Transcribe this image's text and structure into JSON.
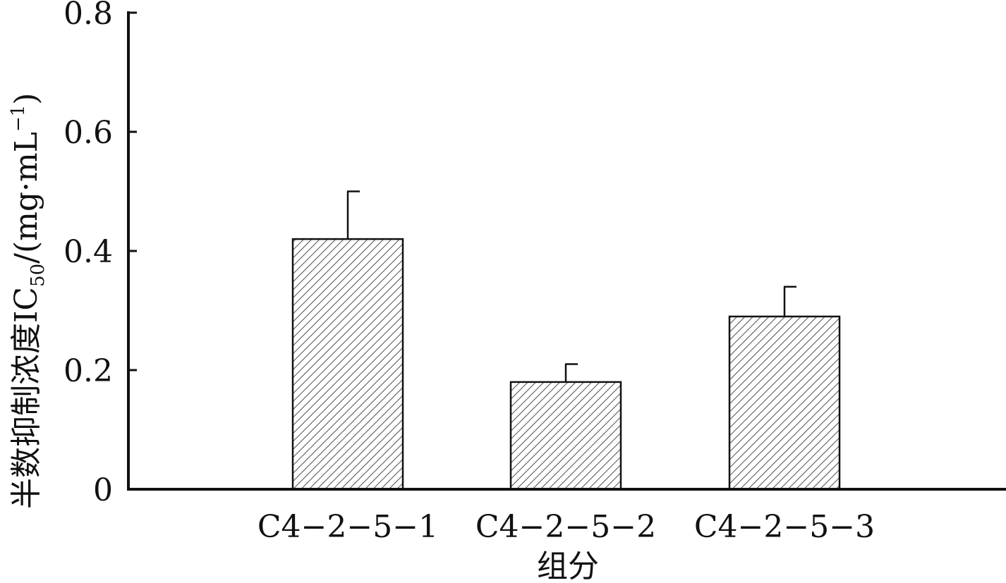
{
  "chart_data": {
    "type": "bar",
    "categories": [
      "C4−2−5−1",
      "C4−2−5−2",
      "C4−2−5−3"
    ],
    "values": [
      0.42,
      0.18,
      0.29
    ],
    "error_upper": [
      0.5,
      0.21,
      0.34
    ],
    "yticks": [
      "0",
      "0.2",
      "0.4",
      "0.6",
      "0.8"
    ],
    "ylim": [
      0,
      0.8
    ],
    "xlabel": "组分",
    "ylabel_main": "半数抑制浓度IC",
    "ylabel_sub": "50",
    "ylabel_unit": "/(mg·mL",
    "ylabel_sup": "−1",
    "ylabel_close": ")",
    "bar_pattern": "diagonal-hatch",
    "grid": false,
    "legend": "none"
  }
}
